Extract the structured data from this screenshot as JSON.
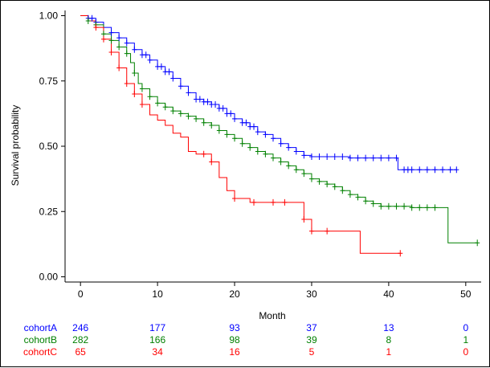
{
  "chart_data": {
    "type": "line",
    "chart_kind": "kaplan-meier survival curve with risk table",
    "xlabel": "Month",
    "ylabel": "Survival probability",
    "xlim": [
      -2,
      52
    ],
    "ylim": [
      -0.02,
      1.02
    ],
    "xticks": [
      0,
      10,
      20,
      30,
      40,
      50
    ],
    "yticks": [
      0.0,
      0.25,
      0.5,
      0.75,
      1.0
    ],
    "ytick_labels": [
      "0.00",
      "0.25",
      "0.50",
      "0.75",
      "1.00"
    ],
    "grid": false,
    "legend": "none",
    "series": [
      {
        "name": "cohortA",
        "color": "#0000ff",
        "steps": [
          [
            0,
            1.0
          ],
          [
            1,
            0.99
          ],
          [
            2,
            0.975
          ],
          [
            3,
            0.955
          ],
          [
            4,
            0.935
          ],
          [
            5,
            0.915
          ],
          [
            6,
            0.895
          ],
          [
            7,
            0.87
          ],
          [
            8,
            0.85
          ],
          [
            9,
            0.83
          ],
          [
            10,
            0.805
          ],
          [
            11,
            0.785
          ],
          [
            12,
            0.76
          ],
          [
            13,
            0.73
          ],
          [
            14,
            0.705
          ],
          [
            15,
            0.68
          ],
          [
            16,
            0.67
          ],
          [
            17,
            0.66
          ],
          [
            18,
            0.645
          ],
          [
            19,
            0.625
          ],
          [
            20,
            0.605
          ],
          [
            21,
            0.59
          ],
          [
            22,
            0.575
          ],
          [
            23,
            0.555
          ],
          [
            24,
            0.545
          ],
          [
            25,
            0.53
          ],
          [
            26,
            0.51
          ],
          [
            27,
            0.495
          ],
          [
            28,
            0.48
          ],
          [
            29,
            0.465
          ],
          [
            30,
            0.46
          ],
          [
            35,
            0.455
          ],
          [
            41.2,
            0.41
          ],
          [
            48.8,
            0.41
          ]
        ],
        "censor_times": [
          1,
          1.5,
          2,
          4,
          5,
          6,
          7,
          8,
          8.5,
          9,
          10,
          10.5,
          11,
          11.5,
          12,
          13,
          14,
          15,
          15.5,
          16,
          16.5,
          17,
          17.5,
          18,
          18.5,
          19,
          19.5,
          20,
          21,
          21.5,
          22,
          22.5,
          23,
          24,
          25,
          26,
          27,
          28,
          29,
          30,
          31,
          32,
          33,
          34,
          35,
          36,
          37,
          38,
          39,
          40,
          41,
          42,
          42.5,
          43,
          44,
          45,
          46,
          47,
          48,
          48.8
        ],
        "risk_table": [
          246,
          177,
          93,
          37,
          13,
          0
        ]
      },
      {
        "name": "cohortB",
        "color": "#008000",
        "steps": [
          [
            0,
            1.0
          ],
          [
            1,
            0.98
          ],
          [
            2,
            0.965
          ],
          [
            3,
            0.93
          ],
          [
            4,
            0.905
          ],
          [
            5,
            0.88
          ],
          [
            6,
            0.855
          ],
          [
            6.5,
            0.82
          ],
          [
            7,
            0.78
          ],
          [
            7.5,
            0.74
          ],
          [
            8,
            0.72
          ],
          [
            9,
            0.69
          ],
          [
            10,
            0.665
          ],
          [
            11,
            0.65
          ],
          [
            12,
            0.635
          ],
          [
            13,
            0.625
          ],
          [
            14,
            0.615
          ],
          [
            15,
            0.605
          ],
          [
            16,
            0.59
          ],
          [
            17,
            0.58
          ],
          [
            18,
            0.56
          ],
          [
            19,
            0.545
          ],
          [
            20,
            0.53
          ],
          [
            21,
            0.51
          ],
          [
            22,
            0.495
          ],
          [
            23,
            0.48
          ],
          [
            24,
            0.47
          ],
          [
            25,
            0.455
          ],
          [
            26,
            0.44
          ],
          [
            27,
            0.425
          ],
          [
            28,
            0.41
          ],
          [
            29,
            0.395
          ],
          [
            30,
            0.375
          ],
          [
            31,
            0.365
          ],
          [
            32,
            0.355
          ],
          [
            33,
            0.345
          ],
          [
            34,
            0.33
          ],
          [
            35,
            0.315
          ],
          [
            36,
            0.305
          ],
          [
            37,
            0.29
          ],
          [
            38,
            0.28
          ],
          [
            39,
            0.27
          ],
          [
            43,
            0.265
          ],
          [
            47.7,
            0.13
          ],
          [
            51.5,
            0.13
          ]
        ],
        "censor_times": [
          1,
          2,
          3,
          4,
          5,
          6,
          7,
          8,
          9,
          10,
          11,
          12,
          13,
          14,
          15,
          16,
          17,
          18,
          19,
          20,
          21,
          22,
          23,
          24,
          25,
          26,
          27,
          28,
          29,
          30,
          31,
          32,
          33,
          34,
          35,
          36,
          37,
          38,
          39,
          40,
          41,
          42,
          43,
          44,
          45,
          46,
          51.5
        ],
        "risk_table": [
          282,
          166,
          98,
          39,
          8,
          1
        ]
      },
      {
        "name": "cohortC",
        "color": "#ff0000",
        "steps": [
          [
            0,
            1.0
          ],
          [
            1,
            0.98
          ],
          [
            2,
            0.955
          ],
          [
            3,
            0.91
          ],
          [
            4,
            0.86
          ],
          [
            5,
            0.8
          ],
          [
            6,
            0.74
          ],
          [
            7,
            0.7
          ],
          [
            8,
            0.66
          ],
          [
            9,
            0.62
          ],
          [
            10,
            0.6
          ],
          [
            11,
            0.58
          ],
          [
            12,
            0.55
          ],
          [
            13,
            0.535
          ],
          [
            14,
            0.48
          ],
          [
            15,
            0.47
          ],
          [
            16,
            0.47
          ],
          [
            17,
            0.44
          ],
          [
            18,
            0.38
          ],
          [
            19,
            0.33
          ],
          [
            20,
            0.3
          ],
          [
            21,
            0.3
          ],
          [
            22,
            0.285
          ],
          [
            26,
            0.285
          ],
          [
            29,
            0.22
          ],
          [
            30,
            0.175
          ],
          [
            36.3,
            0.09
          ],
          [
            41.5,
            0.09
          ]
        ],
        "censor_times": [
          2,
          3,
          4,
          5,
          6,
          7,
          8,
          16,
          17,
          20,
          22.5,
          25,
          26.5,
          29,
          30,
          32,
          41.5
        ],
        "risk_table": [
          65,
          34,
          16,
          5,
          1,
          0
        ]
      }
    ],
    "risk_table_times": [
      0,
      10,
      20,
      30,
      40,
      50
    ]
  }
}
